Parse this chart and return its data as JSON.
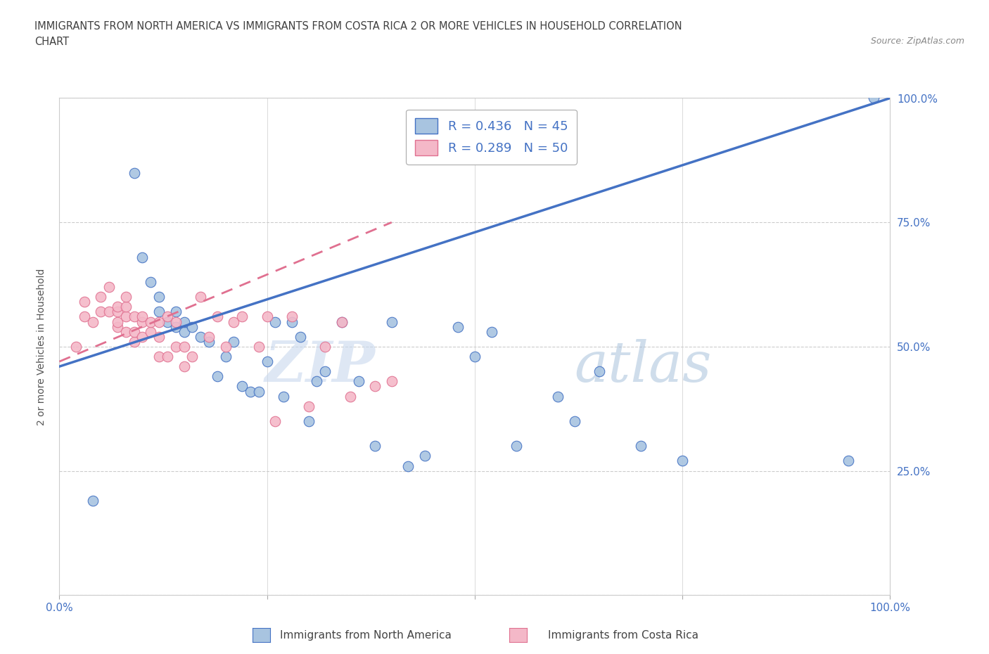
{
  "title_line1": "IMMIGRANTS FROM NORTH AMERICA VS IMMIGRANTS FROM COSTA RICA 2 OR MORE VEHICLES IN HOUSEHOLD CORRELATION",
  "title_line2": "CHART",
  "source_text": "Source: ZipAtlas.com",
  "ylabel": "2 or more Vehicles in Household",
  "xlim": [
    0.0,
    1.0
  ],
  "ylim": [
    0.0,
    1.0
  ],
  "xticks": [
    0.0,
    0.25,
    0.5,
    0.75,
    1.0
  ],
  "yticks": [
    0.0,
    0.25,
    0.5,
    0.75,
    1.0
  ],
  "xticklabels": [
    "0.0%",
    "",
    "",
    "",
    "100.0%"
  ],
  "yticklabels_right": [
    "",
    "25.0%",
    "50.0%",
    "75.0%",
    "100.0%"
  ],
  "legend_r1": "R = 0.436",
  "legend_n1": "N = 45",
  "legend_r2": "R = 0.289",
  "legend_n2": "N = 50",
  "watermark_zip": "ZIP",
  "watermark_atlas": "atlas",
  "color_blue": "#a8c4e0",
  "color_pink": "#f4b8c8",
  "color_blue_line": "#4472c4",
  "color_pink_line": "#e07090",
  "title_color": "#404040",
  "axis_label_color": "#4472c4",
  "blue_scatter_x": [
    0.04,
    0.09,
    0.1,
    0.11,
    0.12,
    0.12,
    0.13,
    0.14,
    0.14,
    0.15,
    0.15,
    0.16,
    0.17,
    0.18,
    0.19,
    0.2,
    0.21,
    0.22,
    0.23,
    0.24,
    0.25,
    0.26,
    0.27,
    0.28,
    0.29,
    0.3,
    0.31,
    0.32,
    0.34,
    0.36,
    0.38,
    0.4,
    0.42,
    0.44,
    0.48,
    0.5,
    0.52,
    0.55,
    0.6,
    0.62,
    0.65,
    0.7,
    0.75,
    0.95,
    0.98
  ],
  "blue_scatter_y": [
    0.19,
    0.85,
    0.68,
    0.63,
    0.57,
    0.6,
    0.55,
    0.54,
    0.57,
    0.53,
    0.55,
    0.54,
    0.52,
    0.51,
    0.44,
    0.48,
    0.51,
    0.42,
    0.41,
    0.41,
    0.47,
    0.55,
    0.4,
    0.55,
    0.52,
    0.35,
    0.43,
    0.45,
    0.55,
    0.43,
    0.3,
    0.55,
    0.26,
    0.28,
    0.54,
    0.48,
    0.53,
    0.3,
    0.4,
    0.35,
    0.45,
    0.3,
    0.27,
    0.27,
    1.0
  ],
  "pink_scatter_x": [
    0.02,
    0.03,
    0.03,
    0.04,
    0.05,
    0.05,
    0.06,
    0.06,
    0.07,
    0.07,
    0.07,
    0.07,
    0.08,
    0.08,
    0.08,
    0.08,
    0.09,
    0.09,
    0.09,
    0.1,
    0.1,
    0.1,
    0.11,
    0.11,
    0.12,
    0.12,
    0.12,
    0.13,
    0.13,
    0.14,
    0.14,
    0.15,
    0.15,
    0.16,
    0.17,
    0.18,
    0.19,
    0.2,
    0.21,
    0.22,
    0.24,
    0.25,
    0.26,
    0.28,
    0.3,
    0.32,
    0.34,
    0.35,
    0.38,
    0.4
  ],
  "pink_scatter_y": [
    0.5,
    0.56,
    0.59,
    0.55,
    0.57,
    0.6,
    0.57,
    0.62,
    0.54,
    0.55,
    0.57,
    0.58,
    0.53,
    0.56,
    0.58,
    0.6,
    0.51,
    0.53,
    0.56,
    0.52,
    0.55,
    0.56,
    0.53,
    0.55,
    0.48,
    0.52,
    0.55,
    0.48,
    0.56,
    0.5,
    0.55,
    0.46,
    0.5,
    0.48,
    0.6,
    0.52,
    0.56,
    0.5,
    0.55,
    0.56,
    0.5,
    0.56,
    0.35,
    0.56,
    0.38,
    0.5,
    0.55,
    0.4,
    0.42,
    0.43
  ],
  "blue_line_x0": 0.0,
  "blue_line_y0": 0.46,
  "blue_line_x1": 1.0,
  "blue_line_y1": 1.0,
  "pink_line_x0": 0.0,
  "pink_line_y0": 0.47,
  "pink_line_x1": 0.4,
  "pink_line_y1": 0.75
}
